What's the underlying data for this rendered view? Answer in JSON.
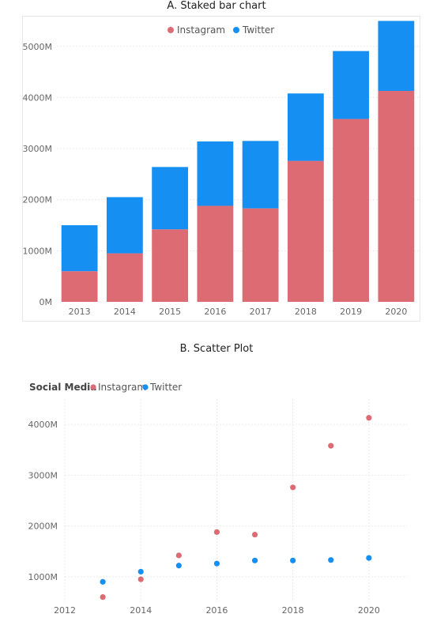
{
  "captions": {
    "a": "A. Staked bar chart",
    "b": "B. Scatter Plot"
  },
  "colors": {
    "instagram": "#dd6b73",
    "twitter": "#168ff2",
    "grid": "#e9e9e9",
    "axis_text": "#666666"
  },
  "chart_data": [
    {
      "type": "bar",
      "stacked": true,
      "title": "",
      "categories": [
        "2013",
        "2014",
        "2015",
        "2016",
        "2017",
        "2018",
        "2019",
        "2020"
      ],
      "series": [
        {
          "name": "Instagram",
          "values": [
            600,
            950,
            1420,
            1880,
            1830,
            2760,
            3580,
            4130
          ]
        },
        {
          "name": "Twitter",
          "values": [
            900,
            1100,
            1220,
            1260,
            1320,
            1320,
            1330,
            1370
          ]
        }
      ],
      "yticks": [
        "0M",
        "1000M",
        "2000M",
        "3000M",
        "4000M",
        "5000M"
      ],
      "ylim": [
        0,
        5600
      ],
      "grid": true,
      "legend": "top-center"
    },
    {
      "type": "scatter",
      "legend_title": "Social Media",
      "series": [
        {
          "name": "Instagram",
          "x": [
            2013,
            2014,
            2015,
            2016,
            2017,
            2018,
            2019,
            2020
          ],
          "y": [
            600,
            950,
            1420,
            1880,
            1830,
            2760,
            3580,
            4130
          ]
        },
        {
          "name": "Twitter",
          "x": [
            2013,
            2014,
            2015,
            2016,
            2017,
            2018,
            2019,
            2020
          ],
          "y": [
            900,
            1100,
            1220,
            1260,
            1320,
            1320,
            1330,
            1370
          ]
        }
      ],
      "xticks": [
        "2012",
        "2014",
        "2016",
        "2018",
        "2020"
      ],
      "yticks": [
        "1000M",
        "2000M",
        "3000M",
        "4000M"
      ],
      "xlim": [
        2012,
        2021
      ],
      "ylim": [
        500,
        4500
      ],
      "grid": true,
      "legend": "top-left"
    }
  ]
}
